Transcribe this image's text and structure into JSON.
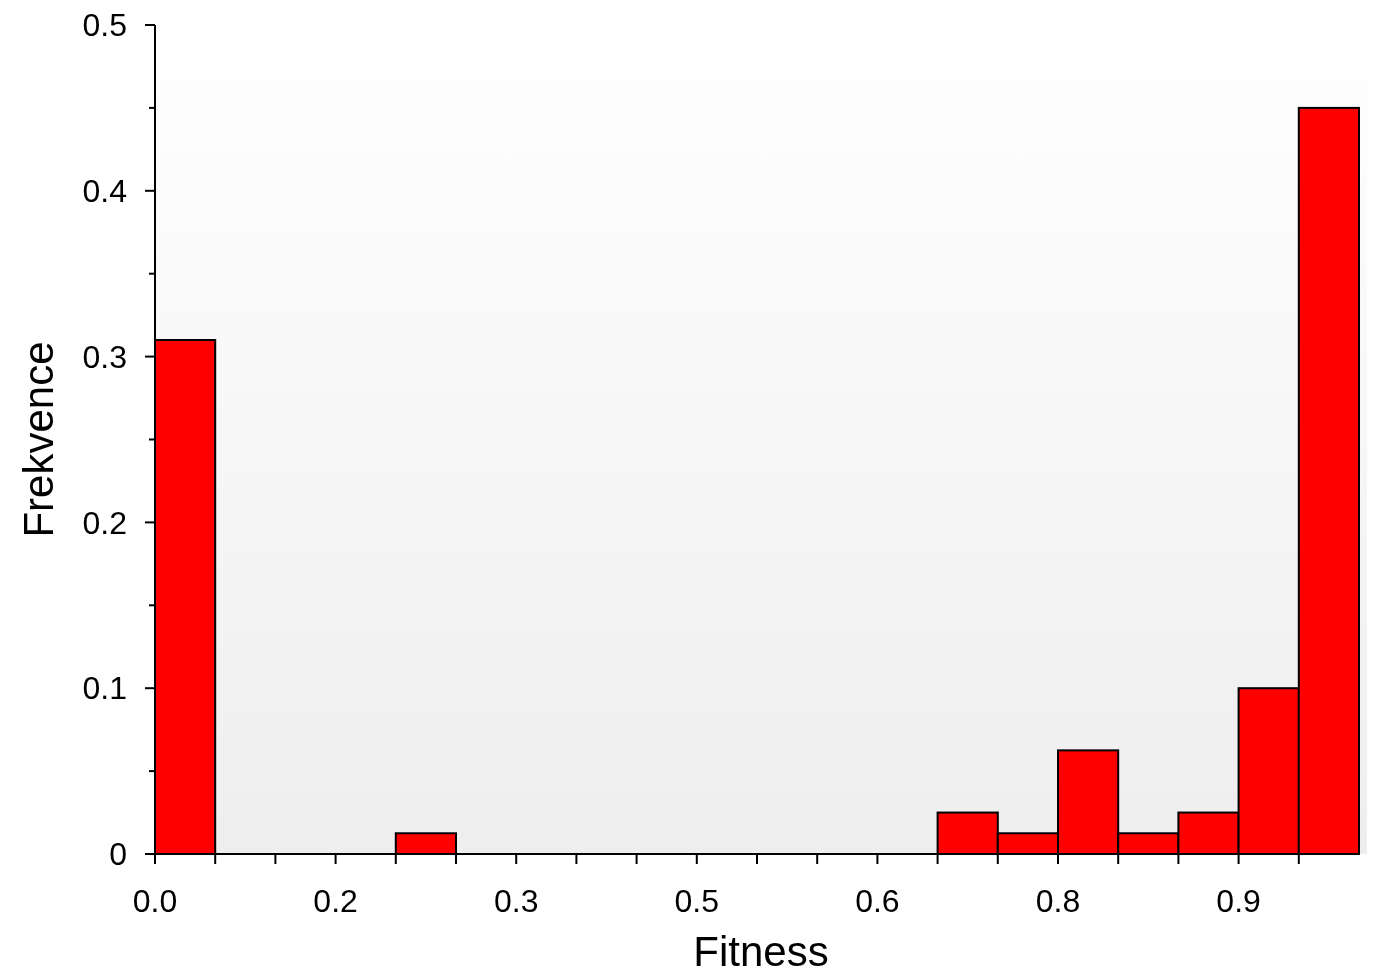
{
  "chart_data": {
    "type": "histogram",
    "xlabel": "Fitness",
    "ylabel": "Frekvence",
    "bins": [
      0,
      0.05,
      0.1,
      0.15,
      0.2,
      0.25,
      0.3,
      0.35,
      0.4,
      0.45,
      0.5,
      0.55,
      0.6,
      0.65,
      0.7,
      0.75,
      0.8,
      0.85,
      0.9,
      0.95,
      1.0
    ],
    "values": [
      0.31,
      0,
      0,
      0,
      0.0125,
      0,
      0,
      0,
      0,
      0,
      0,
      0,
      0,
      0.025,
      0.0125,
      0.0625,
      0.0125,
      0.025,
      0.1,
      0.45
    ],
    "color": "#ff0000",
    "xlim": [
      0,
      1
    ],
    "xticks": [
      {
        "value": 0,
        "label": "0.0"
      },
      {
        "value": 0.05,
        "label": null
      },
      {
        "value": 0.1,
        "label": null
      },
      {
        "value": 0.15,
        "label": "0.2"
      },
      {
        "value": 0.2,
        "label": null
      },
      {
        "value": 0.25,
        "label": null
      },
      {
        "value": 0.3,
        "label": "0.3"
      },
      {
        "value": 0.35,
        "label": null
      },
      {
        "value": 0.4,
        "label": null
      },
      {
        "value": 0.45,
        "label": "0.5"
      },
      {
        "value": 0.5,
        "label": null
      },
      {
        "value": 0.55,
        "label": null
      },
      {
        "value": 0.6,
        "label": "0.6"
      },
      {
        "value": 0.65,
        "label": null
      },
      {
        "value": 0.7,
        "label": null
      },
      {
        "value": 0.75,
        "label": "0.8"
      },
      {
        "value": 0.8,
        "label": null
      },
      {
        "value": 0.85,
        "label": null
      },
      {
        "value": 0.9,
        "label": "0.9"
      },
      {
        "value": 0.95,
        "label": null
      }
    ],
    "ylim": [
      0,
      0.5
    ],
    "yticks": [
      0,
      {
        "value": 0.05,
        "label": null
      },
      0.1,
      {
        "value": 0.15,
        "label": null
      },
      0.2,
      {
        "value": 0.25,
        "label": null
      },
      0.3,
      {
        "value": 0.35,
        "label": null
      },
      0.4,
      {
        "value": 0.45,
        "label": null
      },
      0.5
    ],
    "grid": false
  }
}
